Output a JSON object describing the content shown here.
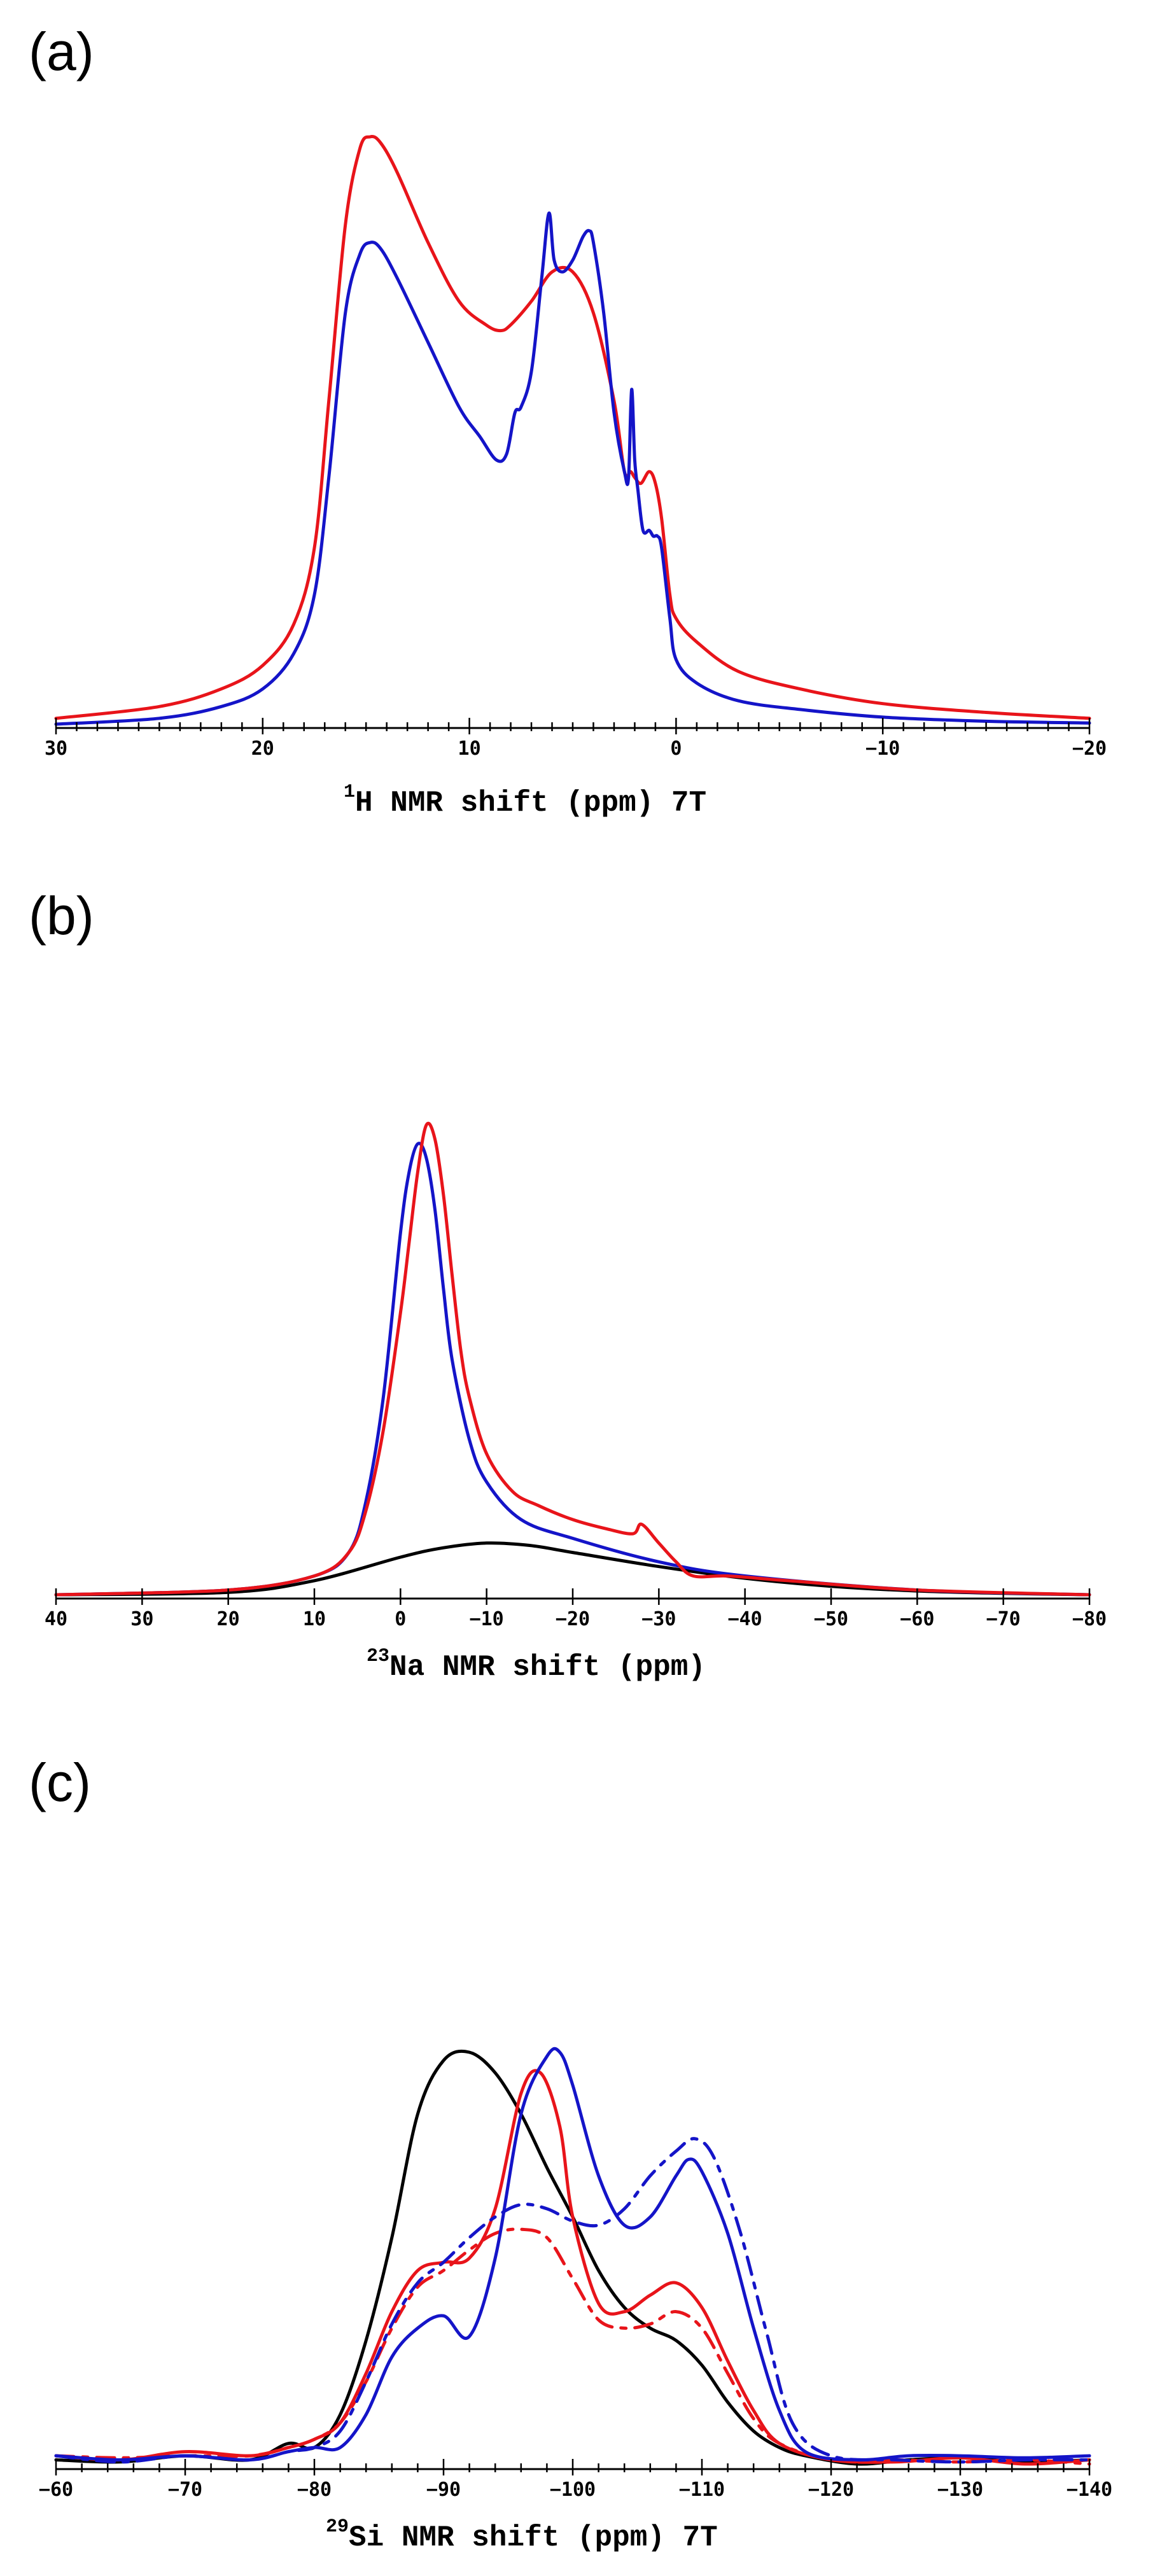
{
  "colors": {
    "red": "#e8141a",
    "blue": "#1414c8",
    "black": "#000000"
  },
  "chart_data": [
    {
      "type": "line",
      "panel_label": "(a)",
      "nucleus_sup": "1",
      "title_main": "H NMR shift (ppm) 7T",
      "xlim": [
        30,
        -20
      ],
      "ylim": [
        0,
        1
      ],
      "xticks_major": [
        30,
        20,
        10,
        0,
        -10,
        -20
      ],
      "xtick_labels": [
        "30",
        "20",
        "10",
        "0",
        "−10",
        "−20"
      ],
      "minor_step": 1,
      "series": [
        {
          "name": "red",
          "color": "red",
          "dash": false,
          "x": [
            30,
            25,
            22,
            20,
            18.5,
            17.5,
            16.8,
            16,
            15.3,
            14.8,
            14.3,
            13.5,
            12,
            10.5,
            9.2,
            8.5,
            8,
            7,
            6,
            5,
            4,
            3,
            2.5,
            2.2,
            2,
            1.7,
            1.3,
            1,
            0.7,
            0.3,
            0,
            -1,
            -3,
            -6,
            -10,
            -15,
            -20
          ],
          "y": [
            0.01,
            0.03,
            0.06,
            0.1,
            0.17,
            0.3,
            0.55,
            0.85,
            0.98,
            1.0,
            0.99,
            0.94,
            0.82,
            0.72,
            0.68,
            0.67,
            0.68,
            0.72,
            0.77,
            0.77,
            0.7,
            0.55,
            0.43,
            0.43,
            0.42,
            0.41,
            0.43,
            0.41,
            0.35,
            0.22,
            0.18,
            0.14,
            0.09,
            0.06,
            0.035,
            0.02,
            0.01
          ]
        },
        {
          "name": "blue",
          "color": "blue",
          "dash": false,
          "x": [
            30,
            25,
            22,
            20,
            18.5,
            17.5,
            16.8,
            16,
            15.3,
            14.8,
            14.3,
            13.5,
            12,
            10.5,
            9.5,
            8.7,
            8.2,
            7.8,
            7.5,
            7,
            6.5,
            6.15,
            5.9,
            5.5,
            5,
            4.5,
            4.2,
            4,
            3.5,
            3,
            2.5,
            2.3,
            2.15,
            2,
            1.85,
            1.6,
            1.3,
            1.1,
            0.9,
            0.7,
            0.3,
            0,
            -1,
            -3,
            -6,
            -10,
            -15,
            -20
          ],
          "y": [
            0.0,
            0.01,
            0.03,
            0.06,
            0.12,
            0.22,
            0.42,
            0.7,
            0.8,
            0.82,
            0.81,
            0.76,
            0.65,
            0.54,
            0.49,
            0.45,
            0.46,
            0.53,
            0.54,
            0.6,
            0.76,
            0.87,
            0.79,
            0.77,
            0.79,
            0.83,
            0.84,
            0.82,
            0.7,
            0.53,
            0.43,
            0.42,
            0.57,
            0.45,
            0.4,
            0.33,
            0.33,
            0.32,
            0.32,
            0.3,
            0.18,
            0.11,
            0.07,
            0.04,
            0.025,
            0.012,
            0.005,
            0.002
          ]
        }
      ]
    },
    {
      "type": "line",
      "panel_label": "(b)",
      "nucleus_sup": "23",
      "title_main": "Na NMR shift (ppm)",
      "xlim": [
        40,
        -80
      ],
      "ylim": [
        0,
        1
      ],
      "xticks_major": [
        40,
        30,
        20,
        10,
        0,
        -10,
        -20,
        -30,
        -40,
        -50,
        -60,
        -70,
        -80
      ],
      "xtick_labels": [
        "40",
        "30",
        "20",
        "10",
        "0",
        "−10",
        "−20",
        "−30",
        "−40",
        "−50",
        "−60",
        "−70",
        "−80"
      ],
      "minor_step": 10,
      "series": [
        {
          "name": "black",
          "color": "black",
          "dash": false,
          "x": [
            40,
            20,
            10,
            0,
            -5,
            -10,
            -15,
            -20,
            -30,
            -40,
            -50,
            -60,
            -70,
            -80
          ],
          "y": [
            0.0,
            0.005,
            0.03,
            0.08,
            0.1,
            0.11,
            0.105,
            0.09,
            0.06,
            0.035,
            0.018,
            0.008,
            0.003,
            0.0
          ]
        },
        {
          "name": "blue",
          "color": "blue",
          "dash": false,
          "x": [
            40,
            20,
            10,
            6,
            4,
            2,
            0,
            -1,
            -2,
            -3,
            -4,
            -5,
            -6,
            -8,
            -10,
            -14,
            -20,
            -30,
            -40,
            -60,
            -80
          ],
          "y": [
            0.0,
            0.01,
            0.04,
            0.09,
            0.2,
            0.42,
            0.77,
            0.9,
            0.96,
            0.93,
            0.82,
            0.65,
            0.5,
            0.33,
            0.24,
            0.16,
            0.12,
            0.07,
            0.04,
            0.01,
            0.0
          ]
        },
        {
          "name": "red",
          "color": "red",
          "dash": false,
          "x": [
            40,
            20,
            10,
            6,
            4,
            2,
            0,
            -1,
            -2,
            -3,
            -4,
            -5,
            -6,
            -7,
            -8,
            -10,
            -13,
            -16,
            -20,
            -24,
            -27,
            -28,
            -30,
            -32,
            -34,
            -38,
            -45,
            -60,
            -80
          ],
          "y": [
            0.0,
            0.01,
            0.04,
            0.09,
            0.18,
            0.35,
            0.6,
            0.75,
            0.9,
            1.0,
            0.97,
            0.85,
            0.68,
            0.52,
            0.42,
            0.3,
            0.22,
            0.19,
            0.16,
            0.14,
            0.13,
            0.15,
            0.11,
            0.07,
            0.04,
            0.04,
            0.03,
            0.01,
            0.0
          ]
        }
      ]
    },
    {
      "type": "line",
      "panel_label": "(c)",
      "nucleus_sup": "29",
      "title_main": "Si NMR shift (ppm) 7T",
      "xlim": [
        -60,
        -140
      ],
      "ylim": [
        0,
        1
      ],
      "xticks_major": [
        -60,
        -70,
        -80,
        -90,
        -100,
        -110,
        -120,
        -130,
        -140
      ],
      "xtick_labels": [
        "−60",
        "−70",
        "−80",
        "−90",
        "−100",
        "−110",
        "−120",
        "−130",
        "−140"
      ],
      "minor_step": 2,
      "series": [
        {
          "name": "black",
          "color": "black",
          "dash": false,
          "x": [
            -60,
            -65,
            -70,
            -75,
            -78,
            -80,
            -82,
            -84,
            -86,
            -88,
            -90,
            -92,
            -94,
            -96,
            -98,
            -100,
            -102,
            -104,
            -106,
            -108,
            -110,
            -112,
            -114,
            -116,
            -118,
            -122,
            -126,
            -130,
            -135,
            -140
          ],
          "y": [
            0.01,
            0.005,
            0.02,
            0.01,
            0.05,
            0.04,
            0.12,
            0.3,
            0.55,
            0.85,
            0.98,
            1.0,
            0.95,
            0.85,
            0.72,
            0.6,
            0.47,
            0.38,
            0.33,
            0.3,
            0.24,
            0.15,
            0.08,
            0.04,
            0.02,
            0.0,
            0.01,
            0.015,
            0.005,
            0.01
          ]
        },
        {
          "name": "red-solid",
          "color": "red",
          "dash": false,
          "x": [
            -60,
            -65,
            -70,
            -75,
            -78,
            -80,
            -82,
            -84,
            -86,
            -88,
            -90,
            -92,
            -94,
            -96,
            -97.5,
            -99,
            -100,
            -102,
            -104,
            -106,
            -108,
            -110,
            -112,
            -114,
            -116,
            -120,
            -125,
            -130,
            -135,
            -140
          ],
          "y": [
            0.02,
            0.01,
            0.03,
            0.02,
            0.04,
            0.06,
            0.1,
            0.22,
            0.37,
            0.47,
            0.49,
            0.5,
            0.62,
            0.9,
            0.95,
            0.82,
            0.6,
            0.39,
            0.37,
            0.41,
            0.44,
            0.38,
            0.25,
            0.13,
            0.05,
            0.01,
            0.005,
            0.015,
            0.0,
            0.01
          ]
        },
        {
          "name": "red-dashed",
          "color": "red",
          "dash": true,
          "x": [
            -60,
            -65,
            -70,
            -75,
            -78,
            -80,
            -82,
            -84,
            -86,
            -88,
            -90,
            -92,
            -94,
            -96,
            -98,
            -100,
            -102,
            -104,
            -106,
            -108,
            -110,
            -112,
            -114,
            -116,
            -120,
            -125,
            -130,
            -135,
            -140
          ],
          "y": [
            0.02,
            0.015,
            0.02,
            0.02,
            0.04,
            0.06,
            0.1,
            0.2,
            0.33,
            0.43,
            0.47,
            0.52,
            0.56,
            0.57,
            0.55,
            0.45,
            0.35,
            0.33,
            0.34,
            0.37,
            0.33,
            0.22,
            0.11,
            0.05,
            0.01,
            0.01,
            0.005,
            0.01,
            0.0
          ]
        },
        {
          "name": "blue-solid",
          "color": "blue",
          "dash": false,
          "x": [
            -60,
            -65,
            -70,
            -75,
            -78,
            -80,
            -82,
            -84,
            -86,
            -88,
            -90,
            -92,
            -94,
            -96,
            -98,
            -99,
            -100,
            -102,
            -104,
            -106,
            -108,
            -109,
            -110,
            -112,
            -114,
            -116,
            -118,
            -122,
            -126,
            -130,
            -135,
            -140
          ],
          "y": [
            0.02,
            0.01,
            0.02,
            0.01,
            0.03,
            0.04,
            0.04,
            0.12,
            0.26,
            0.33,
            0.36,
            0.31,
            0.5,
            0.85,
            0.99,
            1.0,
            0.92,
            0.7,
            0.58,
            0.6,
            0.7,
            0.74,
            0.71,
            0.56,
            0.33,
            0.13,
            0.03,
            0.01,
            0.02,
            0.02,
            0.015,
            0.02
          ]
        },
        {
          "name": "blue-dashed",
          "color": "blue",
          "dash": true,
          "x": [
            -60,
            -65,
            -70,
            -75,
            -78,
            -80,
            -82,
            -84,
            -86,
            -88,
            -90,
            -92,
            -94,
            -96,
            -98,
            -100,
            -102,
            -104,
            -106,
            -108,
            -109.5,
            -111,
            -113,
            -115,
            -117,
            -120,
            -125,
            -130,
            -135,
            -140
          ],
          "y": [
            0.02,
            0.005,
            0.02,
            0.01,
            0.03,
            0.04,
            0.08,
            0.2,
            0.34,
            0.44,
            0.49,
            0.55,
            0.6,
            0.63,
            0.62,
            0.59,
            0.58,
            0.62,
            0.7,
            0.76,
            0.79,
            0.74,
            0.56,
            0.32,
            0.1,
            0.02,
            0.01,
            0.005,
            0.01,
            0.01
          ]
        }
      ]
    }
  ]
}
